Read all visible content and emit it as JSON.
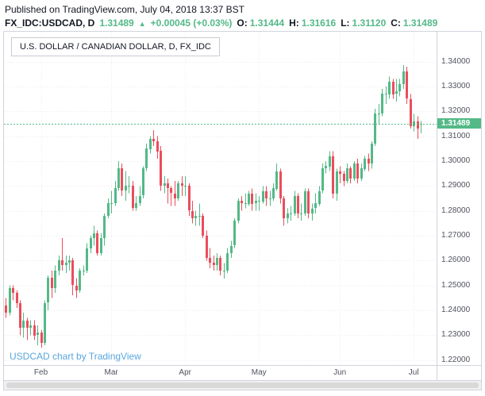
{
  "published_line": "Published on TradingView.com, July 04, 2018 13:37 BST",
  "symbol_bar": {
    "symbol": "FX_IDC:USDCAD, D",
    "last": "1.31489",
    "direction_arrow": "▲",
    "change": "+0.00045 (+0.03%)",
    "open_label": "O:",
    "open": "1.31444",
    "high_label": "H:",
    "high": "1.31616",
    "low_label": "L:",
    "low": "1.31120",
    "close_label": "C:",
    "close": "1.31489"
  },
  "chart": {
    "legend": "U.S. DOLLAR / CANADIAN DOLLAR, D, FX_IDC",
    "watermark": "USDCAD chart by TradingView",
    "last_price_label": "1.31489"
  },
  "colors": {
    "up": "#53b987",
    "down": "#eb4d5c",
    "last_price_badge": "#53b987",
    "watermark_link": "#58a6dd"
  },
  "chart_data": {
    "type": "candlestick",
    "title": "U.S. DOLLAR / CANADIAN DOLLAR, D, FX_IDC",
    "symbol": "FX_IDC:USDCAD",
    "interval": "D",
    "last_price": 1.31489,
    "y_axis": {
      "range": [
        1.218,
        1.352
      ],
      "ticks": [
        1.34,
        1.33,
        1.32,
        1.31,
        1.3,
        1.29,
        1.28,
        1.27,
        1.26,
        1.25,
        1.24,
        1.23,
        1.22
      ],
      "tick_labels": [
        "1.34000",
        "1.33000",
        "1.32000",
        "1.31000",
        "1.30000",
        "1.29000",
        "1.28000",
        "1.27000",
        "1.26000",
        "1.25000",
        "1.24000",
        "1.23000",
        "1.22000"
      ],
      "grid": true
    },
    "x_axis": {
      "tick_labels": [
        "Feb",
        "Mar",
        "Apr",
        "May",
        "Jun",
        "Jul"
      ],
      "tick_indices": [
        10,
        30,
        51,
        72,
        95,
        116
      ],
      "grid": true
    },
    "ohlc_order": [
      "open",
      "high",
      "low",
      "close"
    ],
    "candles": [
      [
        1.242,
        1.245,
        1.237,
        1.239
      ],
      [
        1.239,
        1.25,
        1.238,
        1.249
      ],
      [
        1.249,
        1.25,
        1.244,
        1.247
      ],
      [
        1.247,
        1.248,
        1.241,
        1.243
      ],
      [
        1.243,
        1.244,
        1.23,
        1.233
      ],
      [
        1.233,
        1.239,
        1.229,
        1.236
      ],
      [
        1.236,
        1.237,
        1.228,
        1.233
      ],
      [
        1.233,
        1.236,
        1.23,
        1.234
      ],
      [
        1.234,
        1.236,
        1.228,
        1.23
      ],
      [
        1.23,
        1.234,
        1.226,
        1.231
      ],
      [
        1.231,
        1.232,
        1.225,
        1.227
      ],
      [
        1.227,
        1.244,
        1.226,
        1.243
      ],
      [
        1.243,
        1.254,
        1.24,
        1.253
      ],
      [
        1.253,
        1.256,
        1.245,
        1.249
      ],
      [
        1.249,
        1.258,
        1.247,
        1.256
      ],
      [
        1.256,
        1.262,
        1.254,
        1.26
      ],
      [
        1.26,
        1.269,
        1.256,
        1.258
      ],
      [
        1.258,
        1.262,
        1.255,
        1.259
      ],
      [
        1.259,
        1.262,
        1.256,
        1.26
      ],
      [
        1.26,
        1.261,
        1.246,
        1.25
      ],
      [
        1.25,
        1.253,
        1.245,
        1.248
      ],
      [
        1.248,
        1.257,
        1.247,
        1.256
      ],
      [
        1.256,
        1.258,
        1.254,
        1.256
      ],
      [
        1.256,
        1.267,
        1.255,
        1.265
      ],
      [
        1.265,
        1.27,
        1.263,
        1.269
      ],
      [
        1.269,
        1.274,
        1.266,
        1.271
      ],
      [
        1.271,
        1.272,
        1.262,
        1.263
      ],
      [
        1.263,
        1.271,
        1.262,
        1.269
      ],
      [
        1.269,
        1.279,
        1.266,
        1.278
      ],
      [
        1.278,
        1.285,
        1.277,
        1.283
      ],
      [
        1.283,
        1.288,
        1.279,
        1.283
      ],
      [
        1.283,
        1.292,
        1.282,
        1.289
      ],
      [
        1.289,
        1.3,
        1.288,
        1.297
      ],
      [
        1.297,
        1.299,
        1.286,
        1.288
      ],
      [
        1.288,
        1.296,
        1.284,
        1.29
      ],
      [
        1.29,
        1.294,
        1.287,
        1.29
      ],
      [
        1.29,
        1.292,
        1.28,
        1.281
      ],
      [
        1.281,
        1.286,
        1.28,
        1.283
      ],
      [
        1.283,
        1.29,
        1.282,
        1.286
      ],
      [
        1.286,
        1.298,
        1.285,
        1.297
      ],
      [
        1.297,
        1.307,
        1.296,
        1.305
      ],
      [
        1.305,
        1.31,
        1.303,
        1.309
      ],
      [
        1.309,
        1.3124,
        1.306,
        1.308
      ],
      [
        1.308,
        1.31,
        1.301,
        1.304
      ],
      [
        1.304,
        1.306,
        1.288,
        1.29
      ],
      [
        1.29,
        1.294,
        1.287,
        1.291
      ],
      [
        1.291,
        1.293,
        1.283,
        1.289
      ],
      [
        1.289,
        1.29,
        1.282,
        1.287
      ],
      [
        1.287,
        1.292,
        1.282,
        1.285
      ],
      [
        1.285,
        1.292,
        1.284,
        1.291
      ],
      [
        1.291,
        1.294,
        1.286,
        1.29
      ],
      [
        1.29,
        1.294,
        1.286,
        1.29
      ],
      [
        1.29,
        1.291,
        1.278,
        1.28
      ],
      [
        1.28,
        1.284,
        1.275,
        1.277
      ],
      [
        1.277,
        1.28,
        1.274,
        1.278
      ],
      [
        1.278,
        1.283,
        1.274,
        1.278
      ],
      [
        1.278,
        1.279,
        1.269,
        1.27
      ],
      [
        1.27,
        1.272,
        1.26,
        1.261
      ],
      [
        1.261,
        1.265,
        1.257,
        1.259
      ],
      [
        1.259,
        1.262,
        1.256,
        1.258
      ],
      [
        1.258,
        1.263,
        1.256,
        1.261
      ],
      [
        1.261,
        1.262,
        1.254,
        1.256
      ],
      [
        1.256,
        1.259,
        1.2528,
        1.256
      ],
      [
        1.256,
        1.265,
        1.255,
        1.263
      ],
      [
        1.263,
        1.268,
        1.261,
        1.266
      ],
      [
        1.266,
        1.277,
        1.265,
        1.276
      ],
      [
        1.276,
        1.285,
        1.275,
        1.284
      ],
      [
        1.284,
        1.286,
        1.28,
        1.283
      ],
      [
        1.283,
        1.287,
        1.281,
        1.283
      ],
      [
        1.283,
        1.288,
        1.282,
        1.287
      ],
      [
        1.287,
        1.289,
        1.28,
        1.283
      ],
      [
        1.283,
        1.287,
        1.28,
        1.284
      ],
      [
        1.284,
        1.286,
        1.28,
        1.284
      ],
      [
        1.284,
        1.29,
        1.283,
        1.288
      ],
      [
        1.288,
        1.29,
        1.282,
        1.285
      ],
      [
        1.285,
        1.288,
        1.282,
        1.285
      ],
      [
        1.285,
        1.291,
        1.284,
        1.289
      ],
      [
        1.289,
        1.299,
        1.288,
        1.296
      ],
      [
        1.296,
        1.297,
        1.283,
        1.285
      ],
      [
        1.285,
        1.286,
        1.274,
        1.277
      ],
      [
        1.277,
        1.281,
        1.275,
        1.279
      ],
      [
        1.279,
        1.282,
        1.276,
        1.279
      ],
      [
        1.279,
        1.288,
        1.278,
        1.286
      ],
      [
        1.286,
        1.287,
        1.277,
        1.279
      ],
      [
        1.279,
        1.283,
        1.276,
        1.279
      ],
      [
        1.279,
        1.289,
        1.278,
        1.288
      ],
      [
        1.288,
        1.289,
        1.277,
        1.279
      ],
      [
        1.279,
        1.283,
        1.276,
        1.281
      ],
      [
        1.281,
        1.287,
        1.279,
        1.283
      ],
      [
        1.283,
        1.29,
        1.282,
        1.288
      ],
      [
        1.288,
        1.299,
        1.287,
        1.297
      ],
      [
        1.297,
        1.3,
        1.295,
        1.298
      ],
      [
        1.298,
        1.304,
        1.296,
        1.302
      ],
      [
        1.302,
        1.304,
        1.285,
        1.287
      ],
      [
        1.287,
        1.297,
        1.284,
        1.296
      ],
      [
        1.296,
        1.298,
        1.291,
        1.295
      ],
      [
        1.295,
        1.296,
        1.29,
        1.292
      ],
      [
        1.292,
        1.299,
        1.291,
        1.297
      ],
      [
        1.297,
        1.298,
        1.291,
        1.293
      ],
      [
        1.293,
        1.3,
        1.292,
        1.299
      ],
      [
        1.299,
        1.301,
        1.291,
        1.293
      ],
      [
        1.293,
        1.299,
        1.292,
        1.297
      ],
      [
        1.297,
        1.302,
        1.296,
        1.301
      ],
      [
        1.301,
        1.303,
        1.296,
        1.299
      ],
      [
        1.299,
        1.308,
        1.297,
        1.307
      ],
      [
        1.307,
        1.321,
        1.306,
        1.319
      ],
      [
        1.319,
        1.323,
        1.315,
        1.319
      ],
      [
        1.319,
        1.329,
        1.318,
        1.327
      ],
      [
        1.327,
        1.33,
        1.323,
        1.327
      ],
      [
        1.327,
        1.334,
        1.325,
        1.332
      ],
      [
        1.332,
        1.333,
        1.325,
        1.327
      ],
      [
        1.327,
        1.333,
        1.324,
        1.328
      ],
      [
        1.328,
        1.333,
        1.326,
        1.331
      ],
      [
        1.331,
        1.3386,
        1.329,
        1.336
      ],
      [
        1.336,
        1.338,
        1.323,
        1.325
      ],
      [
        1.325,
        1.327,
        1.313,
        1.314
      ],
      [
        1.314,
        1.319,
        1.312,
        1.316
      ],
      [
        1.316,
        1.318,
        1.309,
        1.313
      ],
      [
        1.31444,
        1.31616,
        1.3112,
        1.31489
      ]
    ]
  }
}
